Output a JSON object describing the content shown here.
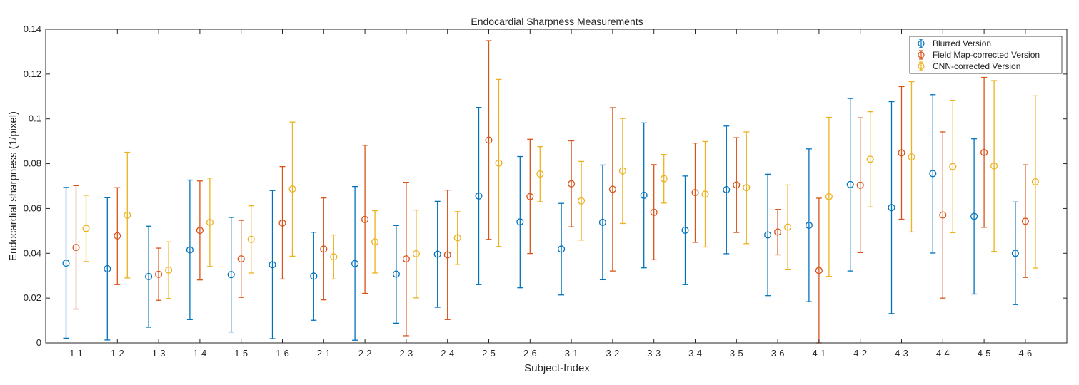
{
  "colors": {
    "blurred": "#0072BD",
    "fieldmap": "#D95319",
    "cnn": "#EDB120",
    "axis": "#262626"
  },
  "chart_data": {
    "type": "errorbar",
    "title": "Endocardial Sharpness Measurements",
    "xlabel": "Subject-Index",
    "ylabel": "Endocardial sharpness (1/pixel)",
    "ylim": [
      0,
      0.14
    ],
    "yticks": [
      "0",
      "0.02",
      "0.04",
      "0.06",
      "0.08",
      "0.1",
      "0.12",
      "0.14"
    ],
    "grid": false,
    "legend_position": "top-right",
    "categories": [
      "1-1",
      "1-2",
      "1-3",
      "1-4",
      "1-5",
      "1-6",
      "2-1",
      "2-2",
      "2-3",
      "2-4",
      "2-5",
      "2-6",
      "3-1",
      "3-2",
      "3-3",
      "3-4",
      "3-5",
      "3-6",
      "4-1",
      "4-2",
      "4-3",
      "4-4",
      "4-5",
      "4-6"
    ],
    "series": [
      {
        "name": "Blurred Version",
        "color_key": "blurred",
        "values": [
          0.0356,
          0.0331,
          0.0296,
          0.0415,
          0.0305,
          0.0349,
          0.0298,
          0.0354,
          0.0307,
          0.0396,
          0.0656,
          0.054,
          0.0419,
          0.0538,
          0.0659,
          0.0503,
          0.0684,
          0.0482,
          0.0525,
          0.0707,
          0.0604,
          0.0756,
          0.0565,
          0.04
        ],
        "lower": [
          0.0021,
          0.0013,
          0.007,
          0.0104,
          0.0049,
          0.0019,
          0.0101,
          0.0012,
          0.0088,
          0.0159,
          0.026,
          0.0246,
          0.0214,
          0.0282,
          0.0335,
          0.026,
          0.0398,
          0.0211,
          0.0184,
          0.0321,
          0.0131,
          0.0401,
          0.0218,
          0.0171
        ],
        "upper": [
          0.0694,
          0.0648,
          0.0521,
          0.0727,
          0.056,
          0.068,
          0.0494,
          0.0698,
          0.0524,
          0.0632,
          0.1051,
          0.0832,
          0.0623,
          0.0794,
          0.0982,
          0.0745,
          0.0968,
          0.0753,
          0.0866,
          0.1091,
          0.1077,
          0.1108,
          0.0911,
          0.0629
        ]
      },
      {
        "name": "Field Map-corrected Version",
        "color_key": "fieldmap",
        "values": [
          0.0426,
          0.0478,
          0.0306,
          0.0502,
          0.0375,
          0.0535,
          0.0419,
          0.0551,
          0.0375,
          0.0393,
          0.0905,
          0.0653,
          0.071,
          0.0686,
          0.0583,
          0.0671,
          0.0705,
          0.0495,
          0.0323,
          0.0704,
          0.0848,
          0.0571,
          0.085,
          0.0543
        ],
        "lower": [
          0.0151,
          0.026,
          0.019,
          0.0281,
          0.0203,
          0.0285,
          0.0192,
          0.0221,
          0.0032,
          0.0104,
          0.0462,
          0.0399,
          0.0518,
          0.0321,
          0.0371,
          0.0449,
          0.0493,
          0.0393,
          0.0,
          0.0403,
          0.0552,
          0.02,
          0.0516,
          0.0292
        ],
        "upper": [
          0.0702,
          0.0693,
          0.0423,
          0.0723,
          0.0547,
          0.0787,
          0.0647,
          0.0882,
          0.0717,
          0.0682,
          0.1349,
          0.0909,
          0.0902,
          0.105,
          0.0796,
          0.0892,
          0.0916,
          0.0596,
          0.0646,
          0.1005,
          0.1144,
          0.0942,
          0.1185,
          0.0795
        ]
      },
      {
        "name": "CNN-corrected Version",
        "color_key": "cnn",
        "values": [
          0.0511,
          0.057,
          0.0325,
          0.0538,
          0.0462,
          0.0687,
          0.0384,
          0.0451,
          0.0398,
          0.0469,
          0.0803,
          0.0754,
          0.0634,
          0.0768,
          0.0733,
          0.0664,
          0.0693,
          0.0517,
          0.0653,
          0.082,
          0.083,
          0.0787,
          0.079,
          0.0719
        ],
        "lower": [
          0.0363,
          0.029,
          0.0198,
          0.0341,
          0.0312,
          0.0387,
          0.0285,
          0.0312,
          0.0201,
          0.0349,
          0.043,
          0.063,
          0.0459,
          0.0533,
          0.0624,
          0.0428,
          0.0443,
          0.0329,
          0.0297,
          0.0607,
          0.0495,
          0.0492,
          0.0408,
          0.0334
        ],
        "upper": [
          0.0659,
          0.0851,
          0.0451,
          0.0736,
          0.0612,
          0.0986,
          0.0482,
          0.059,
          0.0593,
          0.0586,
          0.1176,
          0.0876,
          0.081,
          0.1002,
          0.0841,
          0.0899,
          0.0942,
          0.0705,
          0.1007,
          0.1032,
          0.1166,
          0.1083,
          0.1171,
          0.1103
        ]
      }
    ]
  }
}
